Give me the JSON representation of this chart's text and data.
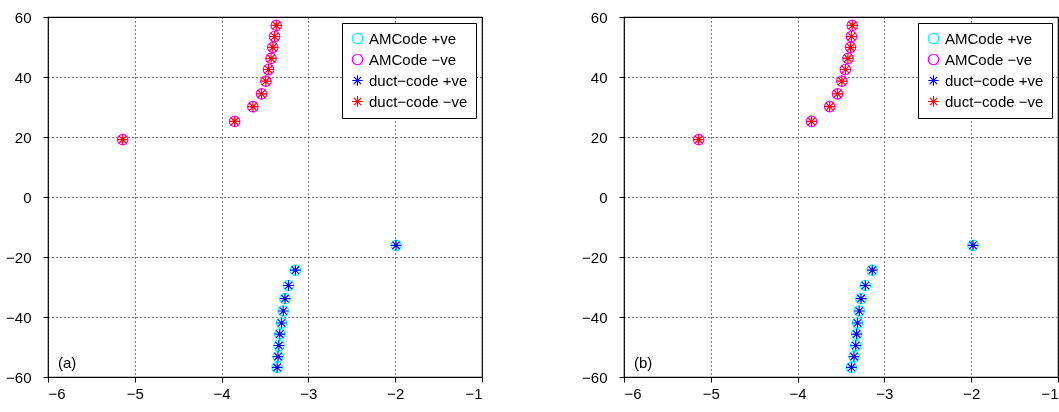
{
  "chart_data": [
    {
      "type": "scatter",
      "annotations": [
        "(a)"
      ],
      "xlim": [
        -6,
        -1
      ],
      "xticks": [
        -6,
        -5,
        -4,
        -3,
        -2,
        -1
      ],
      "ylim": [
        -60,
        60
      ],
      "yticks": [
        -60,
        -40,
        -20,
        0,
        20,
        40,
        60
      ],
      "grid": true,
      "legend": "top right",
      "series": [
        {
          "name": "AMCode +ve",
          "color": "#00ffff",
          "marker": "circle",
          "x": [
            -1.99,
            -3.15,
            -3.23,
            -3.27,
            -3.29,
            -3.31,
            -3.33,
            -3.34,
            -3.35,
            -3.36
          ],
          "values": [
            -16.1,
            -24.4,
            -29.5,
            -33.9,
            -38.0,
            -42.0,
            -45.7,
            -49.5,
            -53.2,
            -56.8
          ]
        },
        {
          "name": "AMCode −ve",
          "color": "#ff00ff",
          "marker": "circle",
          "x": [
            -5.14,
            -3.85,
            -3.64,
            -3.54,
            -3.49,
            -3.46,
            -3.43,
            -3.41,
            -3.39,
            -3.37
          ],
          "values": [
            19.1,
            25.2,
            30.1,
            34.4,
            38.6,
            42.5,
            46.2,
            49.9,
            53.5,
            57.2
          ]
        },
        {
          "name": "duct−code +ve",
          "color": "#0000ff",
          "marker": "cross",
          "x": [
            -1.99,
            -3.15,
            -3.23,
            -3.27,
            -3.29,
            -3.31,
            -3.33,
            -3.34,
            -3.35,
            -3.36
          ],
          "values": [
            -16.1,
            -24.4,
            -29.5,
            -33.9,
            -38.0,
            -42.0,
            -45.7,
            -49.5,
            -53.2,
            -56.8
          ]
        },
        {
          "name": "duct−code −ve",
          "color": "#ff0000",
          "marker": "cross",
          "x": [
            -5.14,
            -3.85,
            -3.64,
            -3.54,
            -3.49,
            -3.46,
            -3.43,
            -3.41,
            -3.39,
            -3.37
          ],
          "values": [
            19.1,
            25.2,
            30.1,
            34.4,
            38.6,
            42.5,
            46.2,
            49.9,
            53.5,
            57.2
          ]
        }
      ]
    },
    {
      "type": "scatter",
      "annotations": [
        "(b)"
      ],
      "xlim": [
        -6,
        -1
      ],
      "xticks": [
        -6,
        -5,
        -4,
        -3,
        -2,
        -1
      ],
      "ylim": [
        -60,
        60
      ],
      "yticks": [
        -60,
        -40,
        -20,
        0,
        20,
        40,
        60
      ],
      "grid": true,
      "legend": "top right",
      "series": [
        {
          "name": "AMCode +ve",
          "color": "#00ffff",
          "marker": "circle",
          "x": [
            -1.98,
            -3.14,
            -3.22,
            -3.27,
            -3.29,
            -3.31,
            -3.32,
            -3.33,
            -3.35,
            -3.38
          ],
          "values": [
            -16.1,
            -24.4,
            -29.5,
            -33.9,
            -38.0,
            -42.0,
            -45.7,
            -49.5,
            -53.2,
            -56.8
          ]
        },
        {
          "name": "AMCode −ve",
          "color": "#ff00ff",
          "marker": "circle",
          "x": [
            -5.14,
            -3.84,
            -3.63,
            -3.54,
            -3.49,
            -3.45,
            -3.42,
            -3.39,
            -3.38,
            -3.37
          ],
          "values": [
            19.1,
            25.2,
            30.1,
            34.4,
            38.6,
            42.5,
            46.2,
            49.9,
            53.5,
            57.2
          ]
        },
        {
          "name": "duct−code +ve",
          "color": "#0000ff",
          "marker": "cross",
          "x": [
            -1.98,
            -3.14,
            -3.22,
            -3.27,
            -3.29,
            -3.31,
            -3.32,
            -3.33,
            -3.35,
            -3.38
          ],
          "values": [
            -16.1,
            -24.4,
            -29.5,
            -33.9,
            -38.0,
            -42.0,
            -45.7,
            -49.5,
            -53.2,
            -56.8
          ]
        },
        {
          "name": "duct−code −ve",
          "color": "#ff0000",
          "marker": "cross",
          "x": [
            -5.14,
            -3.84,
            -3.63,
            -3.54,
            -3.49,
            -3.45,
            -3.42,
            -3.39,
            -3.38,
            -3.37
          ],
          "values": [
            19.1,
            25.2,
            30.1,
            34.4,
            38.6,
            42.5,
            46.2,
            49.9,
            53.5,
            57.2
          ]
        }
      ]
    }
  ]
}
